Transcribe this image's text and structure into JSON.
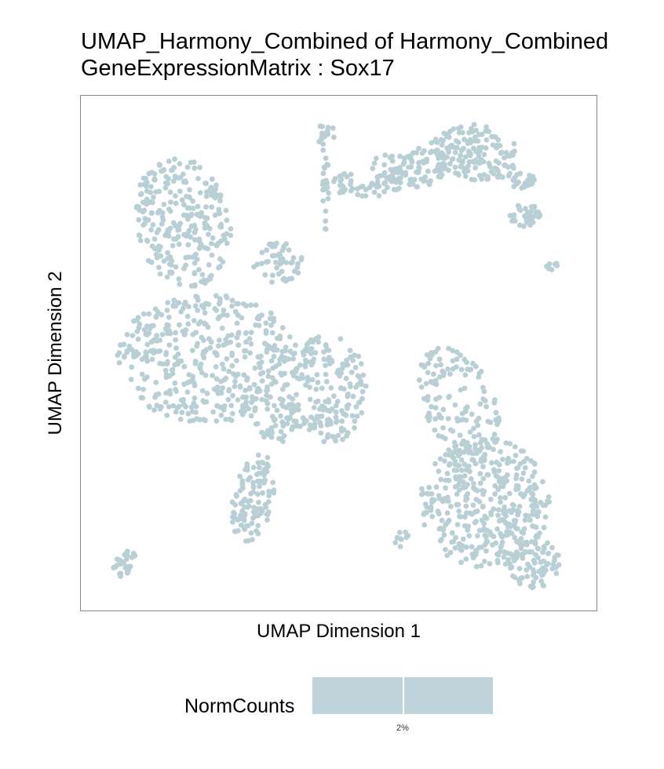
{
  "chart_data": {
    "type": "scatter",
    "title_lines": [
      "UMAP_Harmony_Combined of Harmony_Combined",
      "GeneExpressionMatrix : Sox17"
    ],
    "xlabel": "UMAP Dimension 1",
    "ylabel": "UMAP Dimension 2",
    "xlim": [
      0,
      100
    ],
    "ylim": [
      0,
      100
    ],
    "grid": false,
    "point_color": "#b9cfd6",
    "legend": {
      "placement": "bottom",
      "title": "NormCounts",
      "color": "#bfd4da",
      "tick_label": "2%",
      "tick_value": 0.5
    },
    "clusters": [
      {
        "cx": 24,
        "cy": 49,
        "rx": 18,
        "ry": 13,
        "rot": 0,
        "n": 430
      },
      {
        "cx": 19,
        "cy": 76,
        "rx": 9.5,
        "ry": 13,
        "rot": 12,
        "n": 260
      },
      {
        "cx": 48,
        "cy": 43,
        "rx": 7.5,
        "ry": 11,
        "rot": 0,
        "n": 160
      },
      {
        "cx": 77,
        "cy": 90,
        "rx": 9,
        "ry": 5.5,
        "rot": -10,
        "n": 150
      },
      {
        "cx": 64,
        "cy": 87,
        "rx": 8,
        "ry": 4,
        "rot": 0,
        "n": 90
      },
      {
        "cx": 54.5,
        "cy": 83.5,
        "rx": 8,
        "ry": 2.5,
        "rot": 0,
        "n": 55
      },
      {
        "cx": 87,
        "cy": 77.5,
        "rx": 3,
        "ry": 2.3,
        "rot": 0,
        "n": 35
      },
      {
        "cx": 86,
        "cy": 84.5,
        "rx": 4,
        "ry": 1.8,
        "rot": 0,
        "n": 25
      },
      {
        "cx": 74,
        "cy": 40,
        "rx": 7,
        "ry": 12,
        "rot": 24,
        "n": 130
      },
      {
        "cx": 79,
        "cy": 20,
        "rx": 13,
        "ry": 13,
        "rot": 0,
        "n": 380
      },
      {
        "cx": 89,
        "cy": 8,
        "rx": 5,
        "ry": 5,
        "rot": 0,
        "n": 70
      },
      {
        "cx": 33,
        "cy": 21,
        "rx": 4,
        "ry": 9,
        "rot": -12,
        "n": 110
      },
      {
        "cx": 7.5,
        "cy": 8,
        "rx": 2.6,
        "ry": 3,
        "rot": 0,
        "n": 30
      },
      {
        "cx": 38,
        "cy": 68,
        "rx": 5,
        "ry": 4,
        "rot": 0,
        "n": 50
      },
      {
        "cx": 37.5,
        "cy": 37,
        "rx": 5,
        "ry": 5,
        "rot": 0,
        "n": 35
      },
      {
        "cx": 40,
        "cy": 39,
        "rx": 2,
        "ry": 5,
        "rot": 0,
        "n": 25
      },
      {
        "cx": 46,
        "cy": 36,
        "rx": 4,
        "ry": 1.5,
        "rot": 0,
        "n": 16
      },
      {
        "cx": 47.5,
        "cy": 93,
        "rx": 1.8,
        "ry": 3,
        "rot": 0,
        "n": 16
      },
      {
        "cx": 47.5,
        "cy": 82,
        "rx": 0.7,
        "ry": 8,
        "rot": 0,
        "n": 18
      },
      {
        "cx": 74.5,
        "cy": 29,
        "rx": 1.5,
        "ry": 4,
        "rot": 0,
        "n": 20
      },
      {
        "cx": 62.5,
        "cy": 13,
        "rx": 1.5,
        "ry": 1.6,
        "rot": 0,
        "n": 10
      },
      {
        "cx": 92.5,
        "cy": 67.5,
        "rx": 1.4,
        "ry": 1.1,
        "rot": 0,
        "n": 8
      }
    ]
  }
}
